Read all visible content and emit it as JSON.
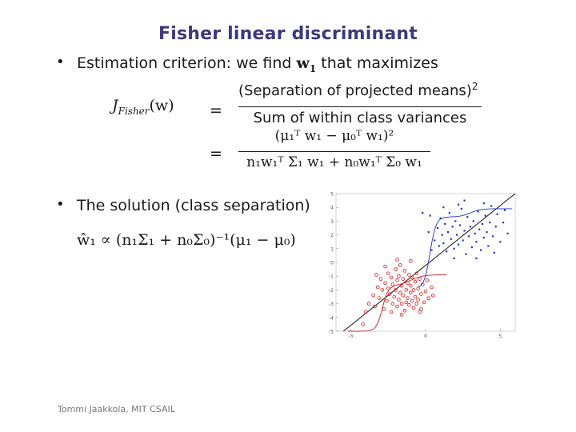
{
  "slide": {
    "title": "Fisher linear discriminant",
    "bullet1_prefix": "Estimation criterion: we find",
    "bullet1_var": "w",
    "bullet1_sub": "1",
    "bullet1_suffix": "that maximizes",
    "eq1_lhs_J": "J",
    "eq1_lhs_sub": "Fisher",
    "eq1_lhs_arg": "(w)",
    "eq_equals": "=",
    "eq1_numerator": "(Separation of projected means)",
    "eq1_numerator_sup": "2",
    "eq1_denominator": "Sum of within class variances",
    "eq2_numerator": "(μ₁ᵀ w₁ − μ₀ᵀ w₁)²",
    "eq2_denominator": "n₁w₁ᵀ Σ₁ w₁ + n₀w₁ᵀ Σ₀ w₁",
    "bullet2_text": "The solution (class separation)",
    "solution_formula": "ŵ₁ ∝ (n₁Σ₁ + n₀Σ₀)⁻¹(μ₁ − μ₀)",
    "footer": "Tommi Jaakkola, MIT CSAIL"
  },
  "chart_data": {
    "type": "scatter",
    "xlim": [
      -6,
      6
    ],
    "ylim": [
      -5,
      5
    ],
    "x_ticks": [
      -5,
      0,
      5
    ],
    "y_ticks": [
      -5,
      -4,
      -3,
      -2,
      -1,
      0,
      1,
      2,
      3,
      4,
      5
    ],
    "colors": {
      "class0": "#d22020",
      "class1": "#2233cc",
      "line": "#111111"
    },
    "series": [
      {
        "marker": "circle",
        "points": [
          [
            -4.2,
            -4.5
          ],
          [
            -4.0,
            -3.6
          ],
          [
            -3.8,
            -3.0
          ],
          [
            -3.5,
            -2.4
          ],
          [
            -3.4,
            -3.2
          ],
          [
            -3.2,
            -1.8
          ],
          [
            -3.1,
            -2.6
          ],
          [
            -3.0,
            -1.2
          ],
          [
            -2.9,
            -2.0
          ],
          [
            -2.8,
            -3.4
          ],
          [
            -2.7,
            -1.5
          ],
          [
            -2.6,
            -2.8
          ],
          [
            -2.5,
            -0.8
          ],
          [
            -2.5,
            -1.9
          ],
          [
            -2.4,
            -2.3
          ],
          [
            -2.3,
            -1.1
          ],
          [
            -2.2,
            -3.0
          ],
          [
            -2.2,
            -1.6
          ],
          [
            -2.1,
            -2.5
          ],
          [
            -2.0,
            -0.5
          ],
          [
            -2.0,
            -2.0
          ],
          [
            -1.9,
            -1.3
          ],
          [
            -1.9,
            -3.2
          ],
          [
            -1.8,
            -2.7
          ],
          [
            -1.8,
            -1.0
          ],
          [
            -1.7,
            -2.2
          ],
          [
            -1.7,
            -0.2
          ],
          [
            -1.6,
            -1.7
          ],
          [
            -1.6,
            -3.0
          ],
          [
            -1.5,
            -2.4
          ],
          [
            -1.5,
            -1.2
          ],
          [
            -1.4,
            -3.5
          ],
          [
            -1.4,
            -0.6
          ],
          [
            -1.3,
            -2.0
          ],
          [
            -1.3,
            -2.9
          ],
          [
            -1.2,
            -1.5
          ],
          [
            -1.2,
            -2.6
          ],
          [
            -1.1,
            -3.1
          ],
          [
            -1.1,
            -0.9
          ],
          [
            -1.0,
            -2.2
          ],
          [
            -1.0,
            -1.7
          ],
          [
            -0.9,
            -2.8
          ],
          [
            -0.9,
            -1.1
          ],
          [
            -0.8,
            -3.3
          ],
          [
            -0.8,
            -2.0
          ],
          [
            -0.7,
            -1.4
          ],
          [
            -0.7,
            -2.5
          ],
          [
            -0.6,
            -3.0
          ],
          [
            -0.6,
            -0.8
          ],
          [
            -0.5,
            -1.9
          ],
          [
            -0.5,
            -2.7
          ],
          [
            -0.4,
            -1.2
          ],
          [
            -0.3,
            -2.3
          ],
          [
            -0.3,
            -3.4
          ],
          [
            -0.2,
            -1.6
          ],
          [
            -0.1,
            -2.9
          ],
          [
            0.0,
            -2.1
          ],
          [
            0.1,
            -1.3
          ],
          [
            0.2,
            -2.6
          ],
          [
            0.4,
            -1.8
          ],
          [
            -1.6,
            -3.8
          ],
          [
            -2.7,
            -0.3
          ],
          [
            -1.0,
            0.1
          ],
          [
            -0.4,
            -3.6
          ],
          [
            -2.3,
            -3.6
          ],
          [
            -3.3,
            -0.9
          ],
          [
            0.5,
            -2.4
          ],
          [
            -1.9,
            0.2
          ]
        ]
      },
      {
        "marker": "square",
        "points": [
          [
            0.4,
            0.9
          ],
          [
            0.6,
            1.6
          ],
          [
            0.8,
            2.5
          ],
          [
            0.9,
            1.2
          ],
          [
            1.0,
            3.2
          ],
          [
            1.1,
            2.0
          ],
          [
            1.2,
            1.4
          ],
          [
            1.3,
            2.8
          ],
          [
            1.4,
            0.8
          ],
          [
            1.5,
            2.2
          ],
          [
            1.6,
            3.6
          ],
          [
            1.7,
            1.7
          ],
          [
            1.8,
            2.6
          ],
          [
            1.9,
            1.0
          ],
          [
            2.0,
            3.0
          ],
          [
            2.1,
            2.0
          ],
          [
            2.2,
            1.3
          ],
          [
            2.3,
            2.7
          ],
          [
            2.4,
            3.9
          ],
          [
            2.5,
            1.6
          ],
          [
            2.6,
            2.3
          ],
          [
            2.7,
            0.6
          ],
          [
            2.8,
            3.3
          ],
          [
            2.9,
            1.9
          ],
          [
            3.0,
            2.6
          ],
          [
            3.1,
            1.1
          ],
          [
            3.2,
            3.0
          ],
          [
            3.3,
            2.1
          ],
          [
            3.4,
            1.5
          ],
          [
            3.5,
            3.7
          ],
          [
            3.6,
            2.4
          ],
          [
            3.7,
            0.9
          ],
          [
            3.8,
            2.8
          ],
          [
            3.9,
            1.8
          ],
          [
            4.0,
            3.4
          ],
          [
            4.1,
            2.2
          ],
          [
            4.2,
            1.2
          ],
          [
            4.3,
            2.9
          ],
          [
            4.4,
            4.1
          ],
          [
            4.5,
            1.9
          ],
          [
            4.7,
            2.6
          ],
          [
            4.8,
            3.5
          ],
          [
            5.0,
            1.5
          ],
          [
            5.2,
            2.9
          ],
          [
            1.2,
            4.0
          ],
          [
            0.3,
            3.4
          ],
          [
            2.6,
            4.5
          ],
          [
            3.4,
            0.3
          ],
          [
            4.6,
            0.7
          ],
          [
            5.3,
            3.8
          ],
          [
            1.9,
            0.3
          ],
          [
            0.2,
            2.2
          ],
          [
            -0.2,
            3.6
          ],
          [
            2.2,
            4.2
          ],
          [
            3.9,
            4.3
          ],
          [
            5.5,
            2.1
          ]
        ]
      }
    ],
    "decision_line": {
      "from": [
        -5.5,
        -5.0
      ],
      "to": [
        6.0,
        5.0
      ]
    }
  }
}
